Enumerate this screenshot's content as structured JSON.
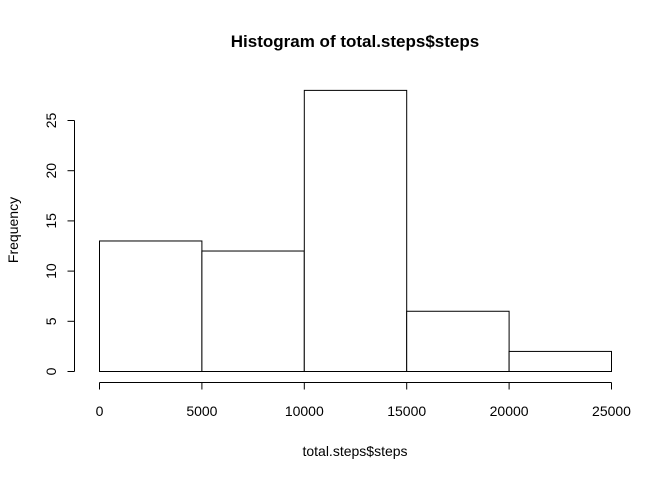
{
  "chart_data": {
    "type": "bar",
    "title": "Histogram of total.steps$steps",
    "xlabel": "total.steps$steps",
    "ylabel": "Frequency",
    "bins": [
      {
        "from": 0,
        "to": 5000,
        "count": 13
      },
      {
        "from": 5000,
        "to": 10000,
        "count": 12
      },
      {
        "from": 10000,
        "to": 15000,
        "count": 28
      },
      {
        "from": 15000,
        "to": 20000,
        "count": 6
      },
      {
        "from": 20000,
        "to": 25000,
        "count": 2
      }
    ],
    "xlim": [
      0,
      25000
    ],
    "ylim": [
      0,
      28
    ],
    "x_ticks": [
      0,
      5000,
      10000,
      15000,
      20000,
      25000
    ],
    "y_ticks": [
      0,
      5,
      10,
      15,
      20,
      25
    ],
    "grid": false,
    "bar_fill": "#ffffff",
    "bar_stroke": "#000000"
  }
}
